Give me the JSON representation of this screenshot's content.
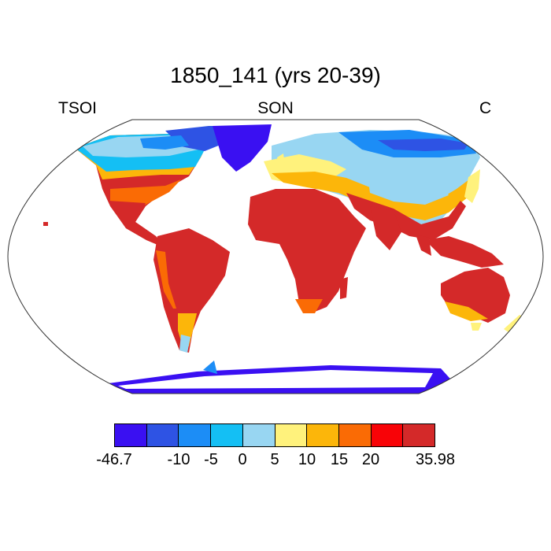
{
  "title": "1850_141 (yrs 20-39)",
  "subtitle": {
    "left": "TSOI",
    "center": "SON",
    "right": "C"
  },
  "colorbar": {
    "colors": [
      "#3a10f2",
      "#2e53e4",
      "#1c8df6",
      "#14bff4",
      "#98d6f2",
      "#fff27c",
      "#fcb60a",
      "#fa6b05",
      "#f80307",
      "#d42929"
    ],
    "labels": [
      "-46.7",
      "-10",
      "-5",
      "0",
      "5",
      "10",
      "15",
      "20",
      "35.98"
    ]
  }
}
